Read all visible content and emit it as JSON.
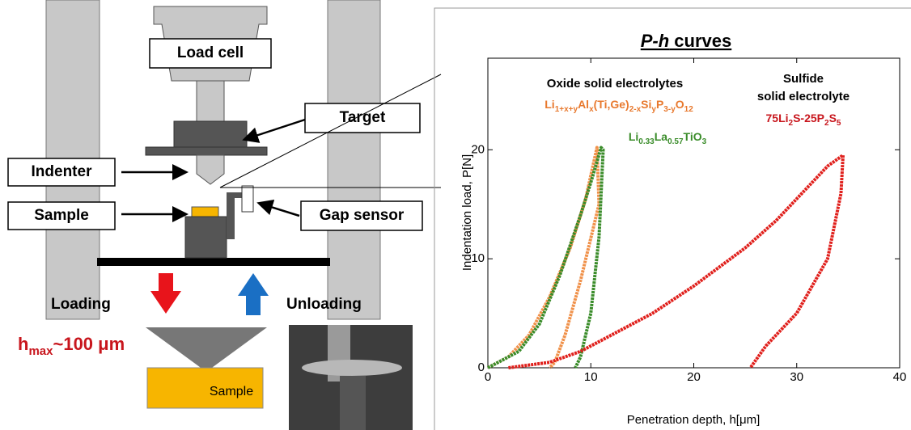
{
  "diagram": {
    "load_cell": "Load cell",
    "target": "Target",
    "indenter": "Indenter",
    "sample": "Sample",
    "gap_sensor": "Gap sensor",
    "loading": "Loading",
    "unloading": "Unloading",
    "hmax": [
      "h",
      "max",
      "~100 μm"
    ],
    "sample_block": "Sample"
  },
  "chart_data": {
    "type": "line",
    "title": [
      "P-h",
      " curves"
    ],
    "xlabel": "Penetration depth, h[μm]",
    "ylabel": "Indentation load, P[N]",
    "xlim": [
      0,
      40
    ],
    "ylim": [
      0,
      28.4
    ],
    "xticks": [
      0,
      10,
      20,
      30,
      40
    ],
    "yticks": [
      0,
      10,
      20
    ],
    "series": [
      {
        "color": "#f0914a",
        "x": [
          0,
          2,
          4,
          6,
          8,
          9.5,
          10.6,
          10.8,
          9,
          7.5,
          6.5,
          6
        ],
        "values": [
          0,
          1,
          3,
          6.5,
          11,
          15.5,
          20.2,
          15,
          8,
          3,
          0.5,
          0
        ]
      },
      {
        "color": "#3a8c2a",
        "x": [
          0,
          3,
          5,
          7,
          9,
          10,
          11,
          11.2,
          10.8,
          10,
          9,
          8.5
        ],
        "values": [
          0,
          1.5,
          4,
          8.5,
          14,
          17,
          20.2,
          20,
          12,
          5,
          1,
          0
        ]
      },
      {
        "color": "#e0201c",
        "x": [
          2,
          6,
          9,
          12,
          16,
          20,
          25,
          28,
          31,
          33,
          34.5,
          34.3,
          33,
          30,
          27,
          25.5
        ],
        "values": [
          0,
          0.5,
          1.5,
          3,
          5,
          7.5,
          11,
          13.5,
          16.5,
          18.5,
          19.5,
          16,
          10,
          5,
          2,
          0
        ]
      }
    ],
    "annotations": [
      {
        "text": [
          "Oxide solid electrolytes"
        ],
        "color": "#000000"
      },
      {
        "text": [
          "Li",
          "1+x+y",
          "Al",
          "x",
          "(Ti,Ge)",
          "2-x",
          "Si",
          "y",
          "P",
          "3-y",
          "O",
          "12"
        ],
        "color": "#e8792e"
      },
      {
        "text": [
          "Li",
          "0.33",
          "La",
          "0.57",
          "TiO",
          "3"
        ],
        "color": "#3a8c2a"
      },
      {
        "text": [
          "Sulfide"
        ],
        "color": "#000000"
      },
      {
        "text": [
          "solid electrolyte"
        ],
        "color": "#000000"
      },
      {
        "text": [
          "75Li",
          "2",
          "S-25P",
          "2",
          "S",
          "5"
        ],
        "color": "#c8161d"
      }
    ]
  }
}
